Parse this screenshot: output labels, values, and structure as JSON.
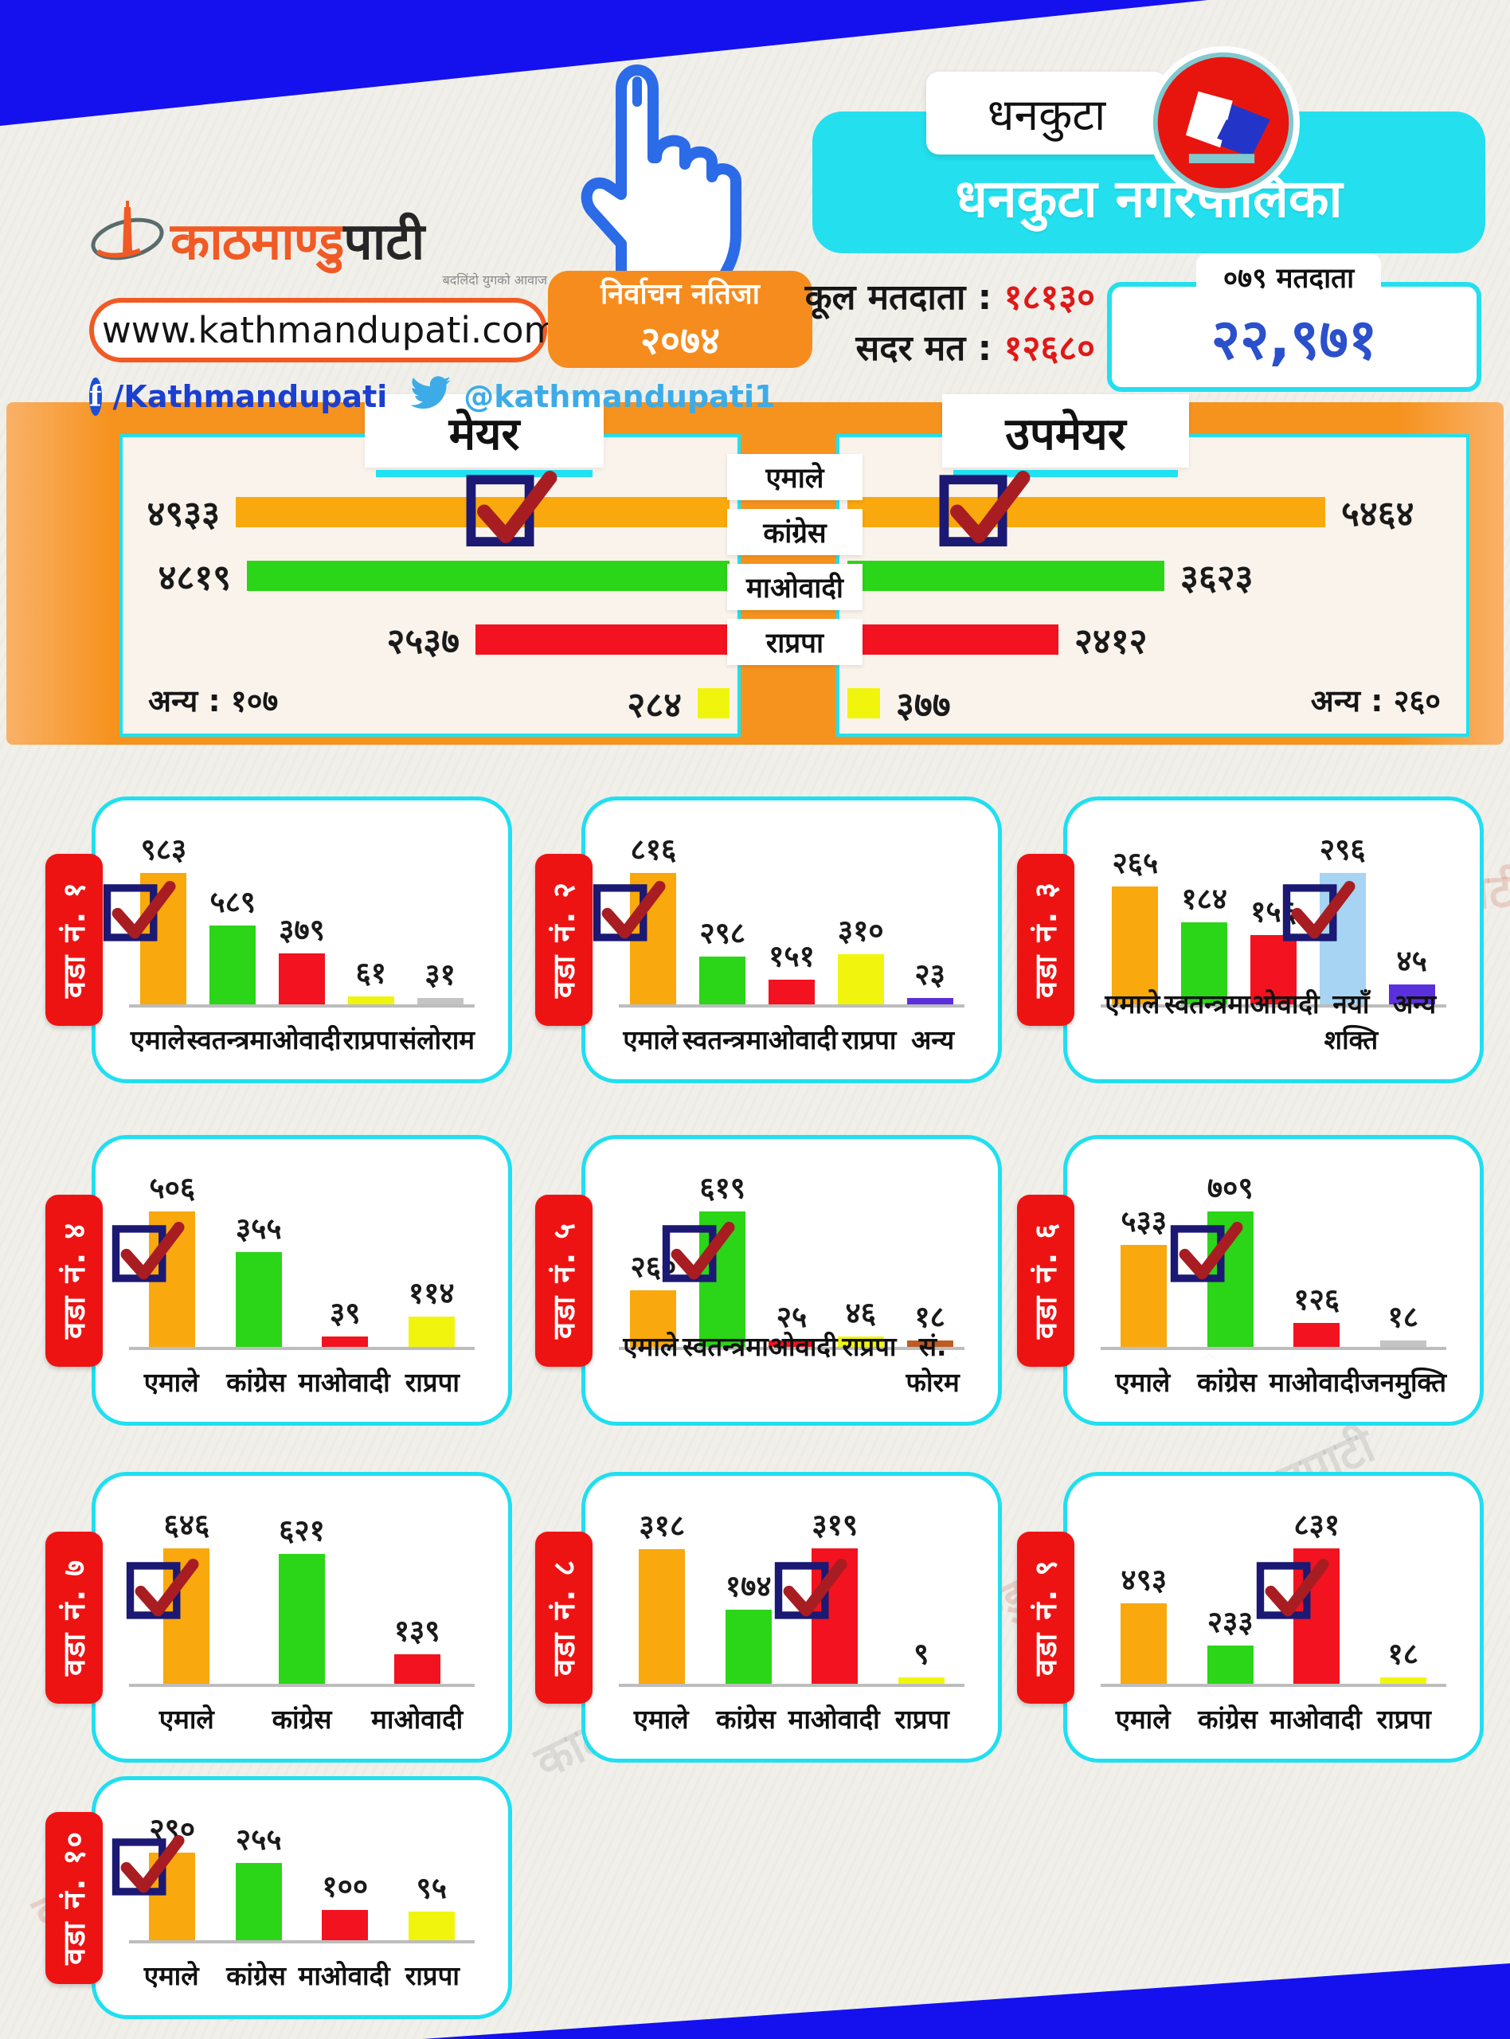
{
  "colors": {
    "uml_orange": "#f9a80d",
    "congress_green": "#2bd517",
    "maoist_red": "#f3121f",
    "rpp_yellow": "#f1f50e",
    "naya_shakti_blue": "#a6d4f2",
    "other_purple": "#5a30dd",
    "forum_brown": "#bf5b25",
    "gray": "#c4c4c4",
    "cyan_border": "#20dff0",
    "band_orange": "#f6921e",
    "deep_blue": "#1411ee"
  },
  "header": {
    "logo": {
      "brand_orange": "काठमाण्डु",
      "brand_black": "पाटी",
      "tagline": "बदलिंदो युगको आवाज",
      "website": "www.kathmandupati.com",
      "facebook_handle": "/Kathmandupati",
      "twitter_handle": "@kathmandupati1"
    },
    "election_badge": {
      "line1": "निर्वाचन नतिजा",
      "line2": "२०७४"
    },
    "district_chip": "धनकुटा",
    "municipality": "धनकुटा नगरपालिका",
    "stats": {
      "total_voters_label": "कूल मतदाता :",
      "total_voters_value": "१८१३०",
      "valid_votes_label": "सदर मत :",
      "valid_votes_value": "१२६८०",
      "voters_chip": "०७९ मतदाता",
      "total_count": "२२,९७१"
    }
  },
  "watermark": "काठमाण्डुपाटी",
  "chart_data": [
    {
      "type": "bar",
      "orientation": "horizontal",
      "title": "मेयर",
      "categories": [
        "एमाले",
        "कांग्रेस",
        "माओवादी",
        "राप्रपा"
      ],
      "values": [
        4933,
        4819,
        2537,
        284
      ],
      "value_labels": [
        "४९३३",
        "४८१९",
        "२५३७",
        "२८४"
      ],
      "colors": [
        "#f9a80d",
        "#2bd517",
        "#f3121f",
        "#f1f50e"
      ],
      "winner_index": 0,
      "other_note": "अन्य : १०७"
    },
    {
      "type": "bar",
      "orientation": "horizontal",
      "title": "उपमेयर",
      "categories": [
        "एमाले",
        "कांग्रेस",
        "माओवादी",
        "राप्रपा"
      ],
      "values": [
        5464,
        3623,
        2412,
        377
      ],
      "value_labels": [
        "५४६४",
        "३६२३",
        "२४१२",
        "३७७"
      ],
      "colors": [
        "#f9a80d",
        "#2bd517",
        "#f3121f",
        "#f1f50e"
      ],
      "winner_index": 0,
      "other_note": "अन्य : २६०"
    },
    {
      "type": "bar",
      "title": "वडा नं. १",
      "categories": [
        "एमाले",
        "स्वतन्त्र",
        "माओवादी",
        "राप्रपा",
        "संलोराम"
      ],
      "values": [
        983,
        589,
        379,
        61,
        31
      ],
      "value_labels": [
        "९८३",
        "५८९",
        "३७९",
        "६१",
        "३१"
      ],
      "colors": [
        "#f9a80d",
        "#2bd517",
        "#f3121f",
        "#f1f50e",
        "#c4c4c4"
      ],
      "winner_index": 0
    },
    {
      "type": "bar",
      "title": "वडा नं. २",
      "categories": [
        "एमाले",
        "स्वतन्त्र",
        "माओवादी",
        "राप्रपा",
        "अन्य"
      ],
      "values": [
        816,
        298,
        151,
        310,
        23
      ],
      "value_labels": [
        "८१६",
        "२९८",
        "१५१",
        "३१०",
        "२३"
      ],
      "colors": [
        "#f9a80d",
        "#2bd517",
        "#f3121f",
        "#f1f50e",
        "#5a30dd"
      ],
      "winner_index": 0
    },
    {
      "type": "bar",
      "title": "वडा नं. ३",
      "categories": [
        "एमाले",
        "स्वतन्त्र",
        "माओवादी",
        "नयाँ शक्ति",
        "अन्य"
      ],
      "values": [
        265,
        184,
        156,
        296,
        45
      ],
      "value_labels": [
        "२६५",
        "१८४",
        "१५६",
        "२९६",
        "४५"
      ],
      "colors": [
        "#f9a80d",
        "#2bd517",
        "#f3121f",
        "#a6d4f2",
        "#5a30dd"
      ],
      "winner_index": 3
    },
    {
      "type": "bar",
      "title": "वडा नं. ४",
      "categories": [
        "एमाले",
        "कांग्रेस",
        "माओवादी",
        "राप्रपा"
      ],
      "values": [
        506,
        355,
        39,
        114
      ],
      "value_labels": [
        "५०६",
        "३५५",
        "३९",
        "११४"
      ],
      "colors": [
        "#f9a80d",
        "#2bd517",
        "#f3121f",
        "#f1f50e"
      ],
      "winner_index": 0
    },
    {
      "type": "bar",
      "title": "वडा नं. ५",
      "categories": [
        "एमाले",
        "स्वतन्त्र",
        "माओवादी",
        "राप्रपा",
        "सं. फोरम"
      ],
      "values": [
        260,
        619,
        25,
        46,
        18
      ],
      "value_labels": [
        "२६०",
        "६१९",
        "२५",
        "४६",
        "१८"
      ],
      "colors": [
        "#f9a80d",
        "#2bd517",
        "#f3121f",
        "#f1f50e",
        "#bf5b25"
      ],
      "winner_index": 1
    },
    {
      "type": "bar",
      "title": "वडा नं. ६",
      "categories": [
        "एमाले",
        "कांग्रेस",
        "माओवादी",
        "जनमुक्ति"
      ],
      "values": [
        533,
        709,
        126,
        18
      ],
      "value_labels": [
        "५३३",
        "७०९",
        "१२६",
        "१८"
      ],
      "colors": [
        "#f9a80d",
        "#2bd517",
        "#f3121f",
        "#c4c4c4"
      ],
      "winner_index": 1
    },
    {
      "type": "bar",
      "title": "वडा नं. ७",
      "categories": [
        "एमाले",
        "कांग्रेस",
        "माओवादी"
      ],
      "values": [
        646,
        621,
        139
      ],
      "value_labels": [
        "६४६",
        "६२१",
        "१३९"
      ],
      "colors": [
        "#f9a80d",
        "#2bd517",
        "#f3121f"
      ],
      "winner_index": 0
    },
    {
      "type": "bar",
      "title": "वडा नं. ८",
      "categories": [
        "एमाले",
        "कांग्रेस",
        "माओवादी",
        "राप्रपा"
      ],
      "values": [
        318,
        174,
        319,
        9
      ],
      "value_labels": [
        "३१८",
        "१७४",
        "३१९",
        "९"
      ],
      "colors": [
        "#f9a80d",
        "#2bd517",
        "#f3121f",
        "#f1f50e"
      ],
      "winner_index": 2
    },
    {
      "type": "bar",
      "title": "वडा नं. ९",
      "categories": [
        "एमाले",
        "कांग्रेस",
        "माओवादी",
        "राप्रपा"
      ],
      "values": [
        493,
        233,
        831,
        18
      ],
      "value_labels": [
        "४९३",
        "२३३",
        "८३१",
        "१८"
      ],
      "colors": [
        "#f9a80d",
        "#2bd517",
        "#f3121f",
        "#f1f50e"
      ],
      "winner_index": 2
    },
    {
      "type": "bar",
      "title": "वडा नं. १०",
      "categories": [
        "एमाले",
        "कांग्रेस",
        "माओवादी",
        "राप्रपा"
      ],
      "values": [
        290,
        255,
        100,
        95
      ],
      "value_labels": [
        "२९०",
        "२५५",
        "१००",
        "९५"
      ],
      "colors": [
        "#f9a80d",
        "#2bd517",
        "#f3121f",
        "#f1f50e"
      ],
      "winner_index": 0
    }
  ]
}
